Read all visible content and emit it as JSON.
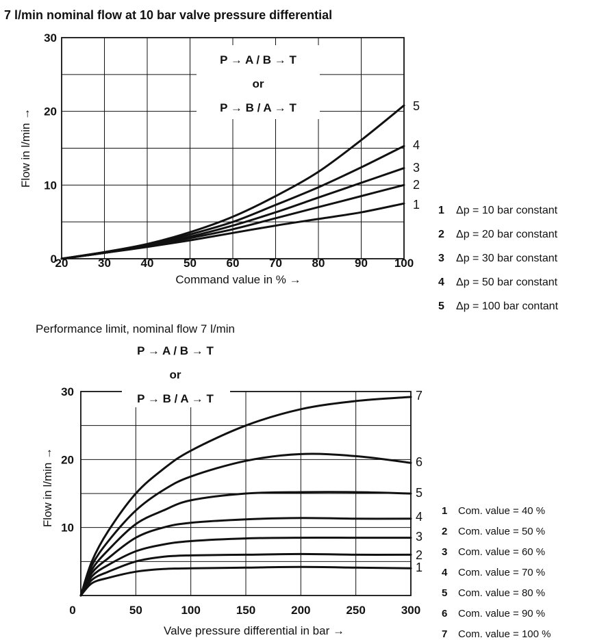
{
  "chart_data": [
    {
      "type": "line",
      "title": "7 l/min nominal flow at 10 bar valve pressure differential",
      "annotation": [
        "P → A / B → T",
        "or",
        "P → B / A → T"
      ],
      "xlabel": "Command value in % →",
      "ylabel": "Flow in l/min →",
      "xlim": [
        20,
        100
      ],
      "ylim": [
        0,
        30
      ],
      "x_ticks": [
        "20",
        "30",
        "40",
        "50",
        "60",
        "70",
        "80",
        "90",
        "100"
      ],
      "y_ticks": [
        "0",
        "10",
        "20",
        "30"
      ],
      "grid": true,
      "legend_position": "right",
      "x": [
        20,
        30,
        40,
        50,
        60,
        70,
        80,
        90,
        100
      ],
      "series": [
        {
          "name": "1",
          "legend": "Δp = 10 bar constant",
          "values": [
            0,
            0.8,
            1.6,
            2.5,
            3.5,
            4.5,
            5.4,
            6.3,
            7.5
          ]
        },
        {
          "name": "2",
          "legend": "Δp = 20 bar constant",
          "values": [
            0,
            0.8,
            1.7,
            2.8,
            4.0,
            5.5,
            7.0,
            8.5,
            10.0
          ]
        },
        {
          "name": "3",
          "legend": "Δp = 30 bar constant",
          "values": [
            0,
            0.8,
            1.8,
            3.0,
            4.5,
            6.3,
            8.3,
            10.3,
            12.3
          ]
        },
        {
          "name": "4",
          "legend": "Δp = 50 bar constant",
          "values": [
            0,
            0.9,
            1.9,
            3.3,
            5.0,
            7.3,
            9.7,
            12.4,
            15.3
          ]
        },
        {
          "name": "5",
          "legend": "Δp = 100 bar contant",
          "values": [
            0,
            0.9,
            2.0,
            3.6,
            5.7,
            8.5,
            11.8,
            16.1,
            20.8
          ]
        }
      ]
    },
    {
      "type": "line",
      "title": "Performance limit, nominal flow 7 l/min",
      "annotation": [
        "P → A / B → T",
        "or",
        "P → B / A → T"
      ],
      "xlabel": "Valve pressure differential in bar →",
      "ylabel": "Flow in l/min →",
      "xlim": [
        0,
        300
      ],
      "ylim": [
        0,
        30
      ],
      "x_ticks": [
        "0",
        "50",
        "100",
        "150",
        "200",
        "250",
        "300"
      ],
      "y_ticks": [
        "10",
        "20",
        "30"
      ],
      "grid": true,
      "legend_position": "right",
      "x": [
        0,
        10,
        25,
        50,
        75,
        100,
        150,
        200,
        250,
        300
      ],
      "series": [
        {
          "name": "1",
          "legend": "Com. value = 40 %",
          "values": [
            0,
            1.8,
            2.6,
            3.5,
            3.9,
            4.0,
            4.1,
            4.2,
            4.1,
            4.0
          ]
        },
        {
          "name": "2",
          "legend": "Com. value = 50 %",
          "values": [
            0,
            2.3,
            3.5,
            5.0,
            5.7,
            5.9,
            6.0,
            6.1,
            6.0,
            6.0
          ]
        },
        {
          "name": "3",
          "legend": "Com. value = 60 %",
          "values": [
            0,
            2.8,
            4.5,
            6.5,
            7.5,
            8.0,
            8.4,
            8.5,
            8.5,
            8.5
          ]
        },
        {
          "name": "4",
          "legend": "Com. value = 70 %",
          "values": [
            0,
            3.3,
            5.5,
            8.5,
            10.0,
            10.7,
            11.2,
            11.4,
            11.3,
            11.3
          ]
        },
        {
          "name": "5",
          "legend": "Com. value = 80 %",
          "values": [
            0,
            3.8,
            6.7,
            10.5,
            12.5,
            14.0,
            15.0,
            15.2,
            15.2,
            15.0
          ]
        },
        {
          "name": "6",
          "legend": "Com. value = 90 %",
          "values": [
            0,
            4.4,
            8.0,
            12.5,
            15.5,
            17.5,
            19.8,
            20.8,
            20.5,
            19.5
          ]
        },
        {
          "name": "7",
          "legend": "Com. value = 100 %",
          "values": [
            0,
            5.0,
            9.5,
            15.0,
            18.6,
            21.3,
            25.0,
            27.4,
            28.6,
            29.2
          ]
        }
      ]
    }
  ]
}
